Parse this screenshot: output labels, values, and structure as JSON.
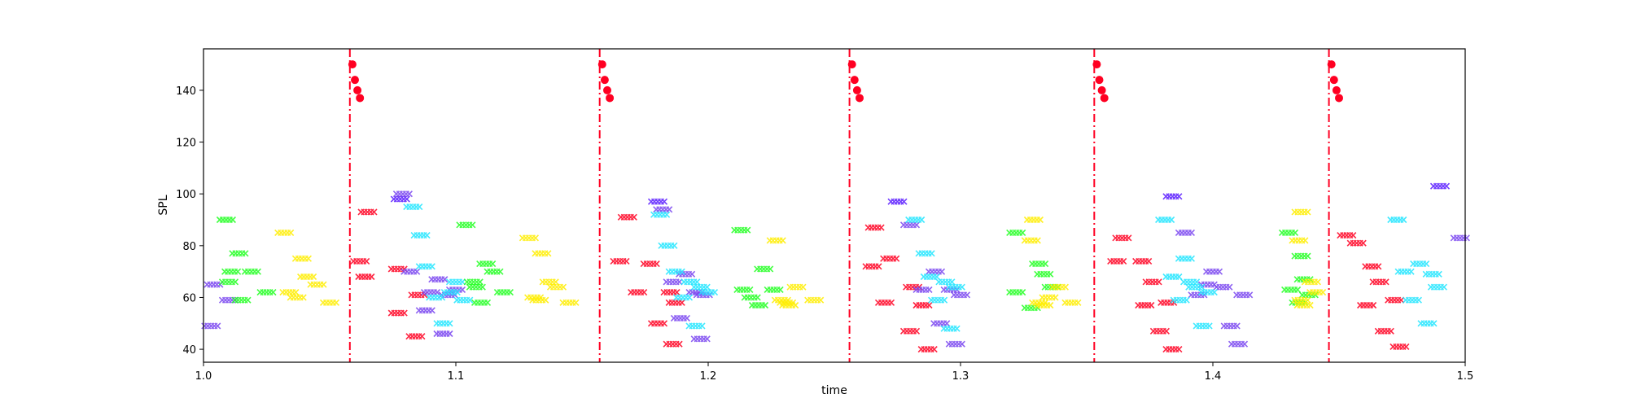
{
  "chart_data": {
    "type": "scatter",
    "title": "",
    "xlabel": "time",
    "ylabel": "SPL",
    "xlim": [
      1.0,
      1.5
    ],
    "ylim": [
      35,
      156
    ],
    "x_ticks": [
      1.0,
      1.1,
      1.2,
      1.3,
      1.4,
      1.5
    ],
    "x_tick_labels": [
      "1.0",
      "1.1",
      "1.2",
      "1.3",
      "1.4",
      "1.5"
    ],
    "y_ticks": [
      40,
      60,
      80,
      100,
      120,
      140
    ],
    "y_tick_labels": [
      "40",
      "60",
      "80",
      "100",
      "120",
      "140"
    ],
    "grid": false,
    "legend": "none",
    "colors": {
      "red": "#ff0022",
      "blue": "#5a1cff",
      "purple": "#7a46f0",
      "cyan": "#22e6ff",
      "green": "#22ff22",
      "yellow": "#ffee00",
      "beat_line": "#ff0022"
    },
    "beat_lines": [
      1.058,
      1.157,
      1.256,
      1.353,
      1.446
    ],
    "onset_dots": [
      {
        "x": 1.059,
        "y": 150
      },
      {
        "x": 1.06,
        "y": 144
      },
      {
        "x": 1.061,
        "y": 140
      },
      {
        "x": 1.062,
        "y": 137
      },
      {
        "x": 1.158,
        "y": 150
      },
      {
        "x": 1.159,
        "y": 144
      },
      {
        "x": 1.16,
        "y": 140
      },
      {
        "x": 1.161,
        "y": 137
      },
      {
        "x": 1.257,
        "y": 150
      },
      {
        "x": 1.258,
        "y": 144
      },
      {
        "x": 1.259,
        "y": 140
      },
      {
        "x": 1.26,
        "y": 137
      },
      {
        "x": 1.354,
        "y": 150
      },
      {
        "x": 1.355,
        "y": 144
      },
      {
        "x": 1.356,
        "y": 140
      },
      {
        "x": 1.357,
        "y": 137
      },
      {
        "x": 1.447,
        "y": 150
      },
      {
        "x": 1.448,
        "y": 144
      },
      {
        "x": 1.449,
        "y": 140
      },
      {
        "x": 1.45,
        "y": 137
      }
    ],
    "series": [
      {
        "color": "red",
        "points": [
          [
            1.065,
            93
          ],
          [
            1.062,
            74
          ],
          [
            1.064,
            68
          ],
          [
            1.077,
            71
          ],
          [
            1.077,
            54
          ],
          [
            1.085,
            61
          ],
          [
            1.084,
            45
          ],
          [
            1.168,
            91
          ],
          [
            1.165,
            74
          ],
          [
            1.177,
            73
          ],
          [
            1.172,
            62
          ],
          [
            1.18,
            50
          ],
          [
            1.185,
            62
          ],
          [
            1.187,
            58
          ],
          [
            1.186,
            42
          ],
          [
            1.266,
            87
          ],
          [
            1.272,
            75
          ],
          [
            1.265,
            72
          ],
          [
            1.27,
            58
          ],
          [
            1.281,
            64
          ],
          [
            1.285,
            57
          ],
          [
            1.28,
            47
          ],
          [
            1.287,
            40
          ],
          [
            1.364,
            83
          ],
          [
            1.362,
            74
          ],
          [
            1.372,
            74
          ],
          [
            1.376,
            66
          ],
          [
            1.373,
            57
          ],
          [
            1.379,
            47
          ],
          [
            1.382,
            58
          ],
          [
            1.384,
            40
          ],
          [
            1.453,
            84
          ],
          [
            1.457,
            81
          ],
          [
            1.463,
            72
          ],
          [
            1.466,
            66
          ],
          [
            1.461,
            57
          ],
          [
            1.472,
            59
          ],
          [
            1.468,
            47
          ],
          [
            1.474,
            41
          ]
        ]
      },
      {
        "color": "blue",
        "points": [
          [
            1.078,
            98
          ],
          [
            1.18,
            97
          ],
          [
            1.275,
            97
          ],
          [
            1.384,
            99
          ],
          [
            1.49,
            103
          ]
        ]
      },
      {
        "color": "purple",
        "points": [
          [
            1.004,
            65
          ],
          [
            1.003,
            49
          ],
          [
            1.01,
            59
          ],
          [
            1.079,
            100
          ],
          [
            1.082,
            70
          ],
          [
            1.088,
            55
          ],
          [
            1.09,
            62
          ],
          [
            1.093,
            67
          ],
          [
            1.095,
            46
          ],
          [
            1.097,
            61
          ],
          [
            1.1,
            63
          ],
          [
            1.182,
            94
          ],
          [
            1.186,
            66
          ],
          [
            1.189,
            52
          ],
          [
            1.191,
            69
          ],
          [
            1.195,
            62
          ],
          [
            1.197,
            44
          ],
          [
            1.198,
            61
          ],
          [
            1.28,
            88
          ],
          [
            1.285,
            63
          ],
          [
            1.29,
            70
          ],
          [
            1.292,
            50
          ],
          [
            1.296,
            63
          ],
          [
            1.298,
            42
          ],
          [
            1.3,
            61
          ],
          [
            1.389,
            85
          ],
          [
            1.394,
            61
          ],
          [
            1.398,
            65
          ],
          [
            1.4,
            70
          ],
          [
            1.404,
            64
          ],
          [
            1.407,
            49
          ],
          [
            1.41,
            42
          ],
          [
            1.412,
            61
          ],
          [
            1.498,
            83
          ]
        ]
      },
      {
        "color": "cyan",
        "points": [
          [
            1.083,
            95
          ],
          [
            1.086,
            84
          ],
          [
            1.088,
            72
          ],
          [
            1.092,
            60
          ],
          [
            1.095,
            50
          ],
          [
            1.098,
            62
          ],
          [
            1.1,
            66
          ],
          [
            1.103,
            59
          ],
          [
            1.181,
            92
          ],
          [
            1.184,
            80
          ],
          [
            1.187,
            70
          ],
          [
            1.19,
            60
          ],
          [
            1.193,
            66
          ],
          [
            1.195,
            49
          ],
          [
            1.197,
            64
          ],
          [
            1.2,
            62
          ],
          [
            1.282,
            90
          ],
          [
            1.286,
            77
          ],
          [
            1.288,
            68
          ],
          [
            1.291,
            59
          ],
          [
            1.294,
            66
          ],
          [
            1.296,
            48
          ],
          [
            1.298,
            64
          ],
          [
            1.381,
            90
          ],
          [
            1.384,
            68
          ],
          [
            1.387,
            59
          ],
          [
            1.389,
            75
          ],
          [
            1.391,
            66
          ],
          [
            1.393,
            64
          ],
          [
            1.396,
            49
          ],
          [
            1.398,
            62
          ],
          [
            1.473,
            90
          ],
          [
            1.476,
            70
          ],
          [
            1.479,
            59
          ],
          [
            1.482,
            73
          ],
          [
            1.485,
            50
          ],
          [
            1.487,
            69
          ],
          [
            1.489,
            64
          ]
        ]
      },
      {
        "color": "green",
        "points": [
          [
            1.009,
            90
          ],
          [
            1.011,
            70
          ],
          [
            1.01,
            66
          ],
          [
            1.014,
            77
          ],
          [
            1.015,
            59
          ],
          [
            1.019,
            70
          ],
          [
            1.025,
            62
          ],
          [
            1.104,
            88
          ],
          [
            1.107,
            66
          ],
          [
            1.108,
            64
          ],
          [
            1.11,
            58
          ],
          [
            1.112,
            73
          ],
          [
            1.115,
            70
          ],
          [
            1.119,
            62
          ],
          [
            1.213,
            86
          ],
          [
            1.214,
            63
          ],
          [
            1.217,
            60
          ],
          [
            1.22,
            57
          ],
          [
            1.222,
            71
          ],
          [
            1.226,
            63
          ],
          [
            1.322,
            85
          ],
          [
            1.322,
            62
          ],
          [
            1.328,
            56
          ],
          [
            1.331,
            73
          ],
          [
            1.333,
            69
          ],
          [
            1.336,
            64
          ],
          [
            1.43,
            85
          ],
          [
            1.431,
            63
          ],
          [
            1.434,
            58
          ],
          [
            1.435,
            76
          ],
          [
            1.436,
            67
          ],
          [
            1.438,
            61
          ]
        ]
      },
      {
        "color": "yellow",
        "points": [
          [
            1.032,
            85
          ],
          [
            1.034,
            62
          ],
          [
            1.037,
            60
          ],
          [
            1.039,
            75
          ],
          [
            1.041,
            68
          ],
          [
            1.045,
            65
          ],
          [
            1.05,
            58
          ],
          [
            1.129,
            83
          ],
          [
            1.131,
            60
          ],
          [
            1.133,
            59
          ],
          [
            1.134,
            77
          ],
          [
            1.137,
            66
          ],
          [
            1.14,
            64
          ],
          [
            1.145,
            58
          ],
          [
            1.227,
            82
          ],
          [
            1.229,
            59
          ],
          [
            1.231,
            58
          ],
          [
            1.232,
            57
          ],
          [
            1.235,
            64
          ],
          [
            1.242,
            59
          ],
          [
            1.328,
            82
          ],
          [
            1.329,
            90
          ],
          [
            1.331,
            58
          ],
          [
            1.333,
            57
          ],
          [
            1.335,
            60
          ],
          [
            1.339,
            64
          ],
          [
            1.344,
            58
          ],
          [
            1.435,
            93
          ],
          [
            1.434,
            82
          ],
          [
            1.435,
            59
          ],
          [
            1.436,
            57
          ],
          [
            1.439,
            66
          ],
          [
            1.441,
            62
          ]
        ]
      }
    ]
  }
}
